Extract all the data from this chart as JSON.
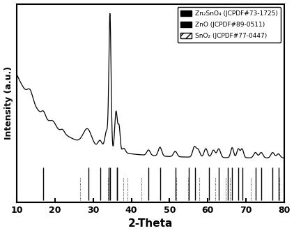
{
  "xlim": [
    10,
    80
  ],
  "xlabel": "2-Theta",
  "ylabel": "Intensity (a.u.)",
  "legend_entries": [
    "Zn₂SnO₄ (JCPDF#73-1725)",
    "ZnO (JCPDF#89-0511)",
    "SnO₂ (JCPDF#77-0447)"
  ],
  "Zn2SnO4_peaks": [
    17.0,
    28.8,
    34.0,
    36.3,
    44.5,
    51.5,
    55.1,
    60.3,
    65.2,
    74.0,
    78.5
  ],
  "ZnO_peaks": [
    31.8,
    34.4,
    36.3,
    47.5,
    56.7,
    62.9,
    66.4,
    68.0,
    69.1,
    72.6,
    77.0
  ],
  "SnO2_peaks": [
    26.6,
    33.9,
    37.9,
    38.9,
    42.6,
    51.8,
    54.8,
    57.8,
    61.9,
    64.7,
    65.9,
    71.3,
    78.7
  ],
  "line_color": "#000000",
  "bg_color": "#ffffff",
  "curve_peaks": [
    [
      13.5,
      0.07,
      0.7
    ],
    [
      17.0,
      0.04,
      0.5
    ],
    [
      19.5,
      0.035,
      0.7
    ],
    [
      22.0,
      0.025,
      0.5
    ],
    [
      28.5,
      0.12,
      1.1
    ],
    [
      31.8,
      0.06,
      0.55
    ],
    [
      33.5,
      0.14,
      0.45
    ],
    [
      34.4,
      1.0,
      0.28
    ],
    [
      36.0,
      0.3,
      0.35
    ],
    [
      36.8,
      0.18,
      0.28
    ],
    [
      38.0,
      0.035,
      0.45
    ],
    [
      44.5,
      0.04,
      0.45
    ],
    [
      47.5,
      0.065,
      0.45
    ],
    [
      51.5,
      0.04,
      0.45
    ],
    [
      56.5,
      0.075,
      0.45
    ],
    [
      57.5,
      0.055,
      0.45
    ],
    [
      59.5,
      0.065,
      0.45
    ],
    [
      61.5,
      0.055,
      0.45
    ],
    [
      62.9,
      0.065,
      0.45
    ],
    [
      66.4,
      0.075,
      0.38
    ],
    [
      68.0,
      0.065,
      0.38
    ],
    [
      69.0,
      0.065,
      0.38
    ],
    [
      72.5,
      0.04,
      0.45
    ],
    [
      74.0,
      0.04,
      0.45
    ],
    [
      77.0,
      0.04,
      0.45
    ],
    [
      78.5,
      0.03,
      0.45
    ]
  ]
}
